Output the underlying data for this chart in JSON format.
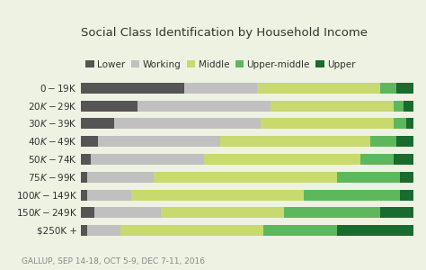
{
  "title": "Social Class Identification by Household Income",
  "footnote": "GALLUP, SEP 14-18, OCT 5-9, DEC 7-11, 2016",
  "categories": [
    "$0-$19K",
    "$20K-$29K",
    "$30K-$39K",
    "$40K-$49K",
    "$50K-$74K",
    "$75K-$99K",
    "$100K-$149K",
    "$150K-$249K",
    "$250K +"
  ],
  "classes": [
    "Lower",
    "Working",
    "Middle",
    "Upper-middle",
    "Upper"
  ],
  "colors": [
    "#555555",
    "#c0c0c0",
    "#c8d96e",
    "#5db85d",
    "#1a6b2e"
  ],
  "data": [
    [
      31,
      22,
      37,
      5,
      5
    ],
    [
      17,
      40,
      37,
      3,
      3
    ],
    [
      10,
      44,
      40,
      4,
      2
    ],
    [
      5,
      37,
      45,
      8,
      5
    ],
    [
      3,
      34,
      47,
      10,
      6
    ],
    [
      2,
      20,
      55,
      19,
      4
    ],
    [
      2,
      13,
      52,
      29,
      4
    ],
    [
      4,
      20,
      37,
      29,
      10
    ],
    [
      2,
      10,
      43,
      22,
      23
    ]
  ],
  "background_color": "#eef2e2",
  "title_fontsize": 9.5,
  "label_fontsize": 7.5,
  "legend_fontsize": 7.5,
  "footnote_fontsize": 6.5
}
